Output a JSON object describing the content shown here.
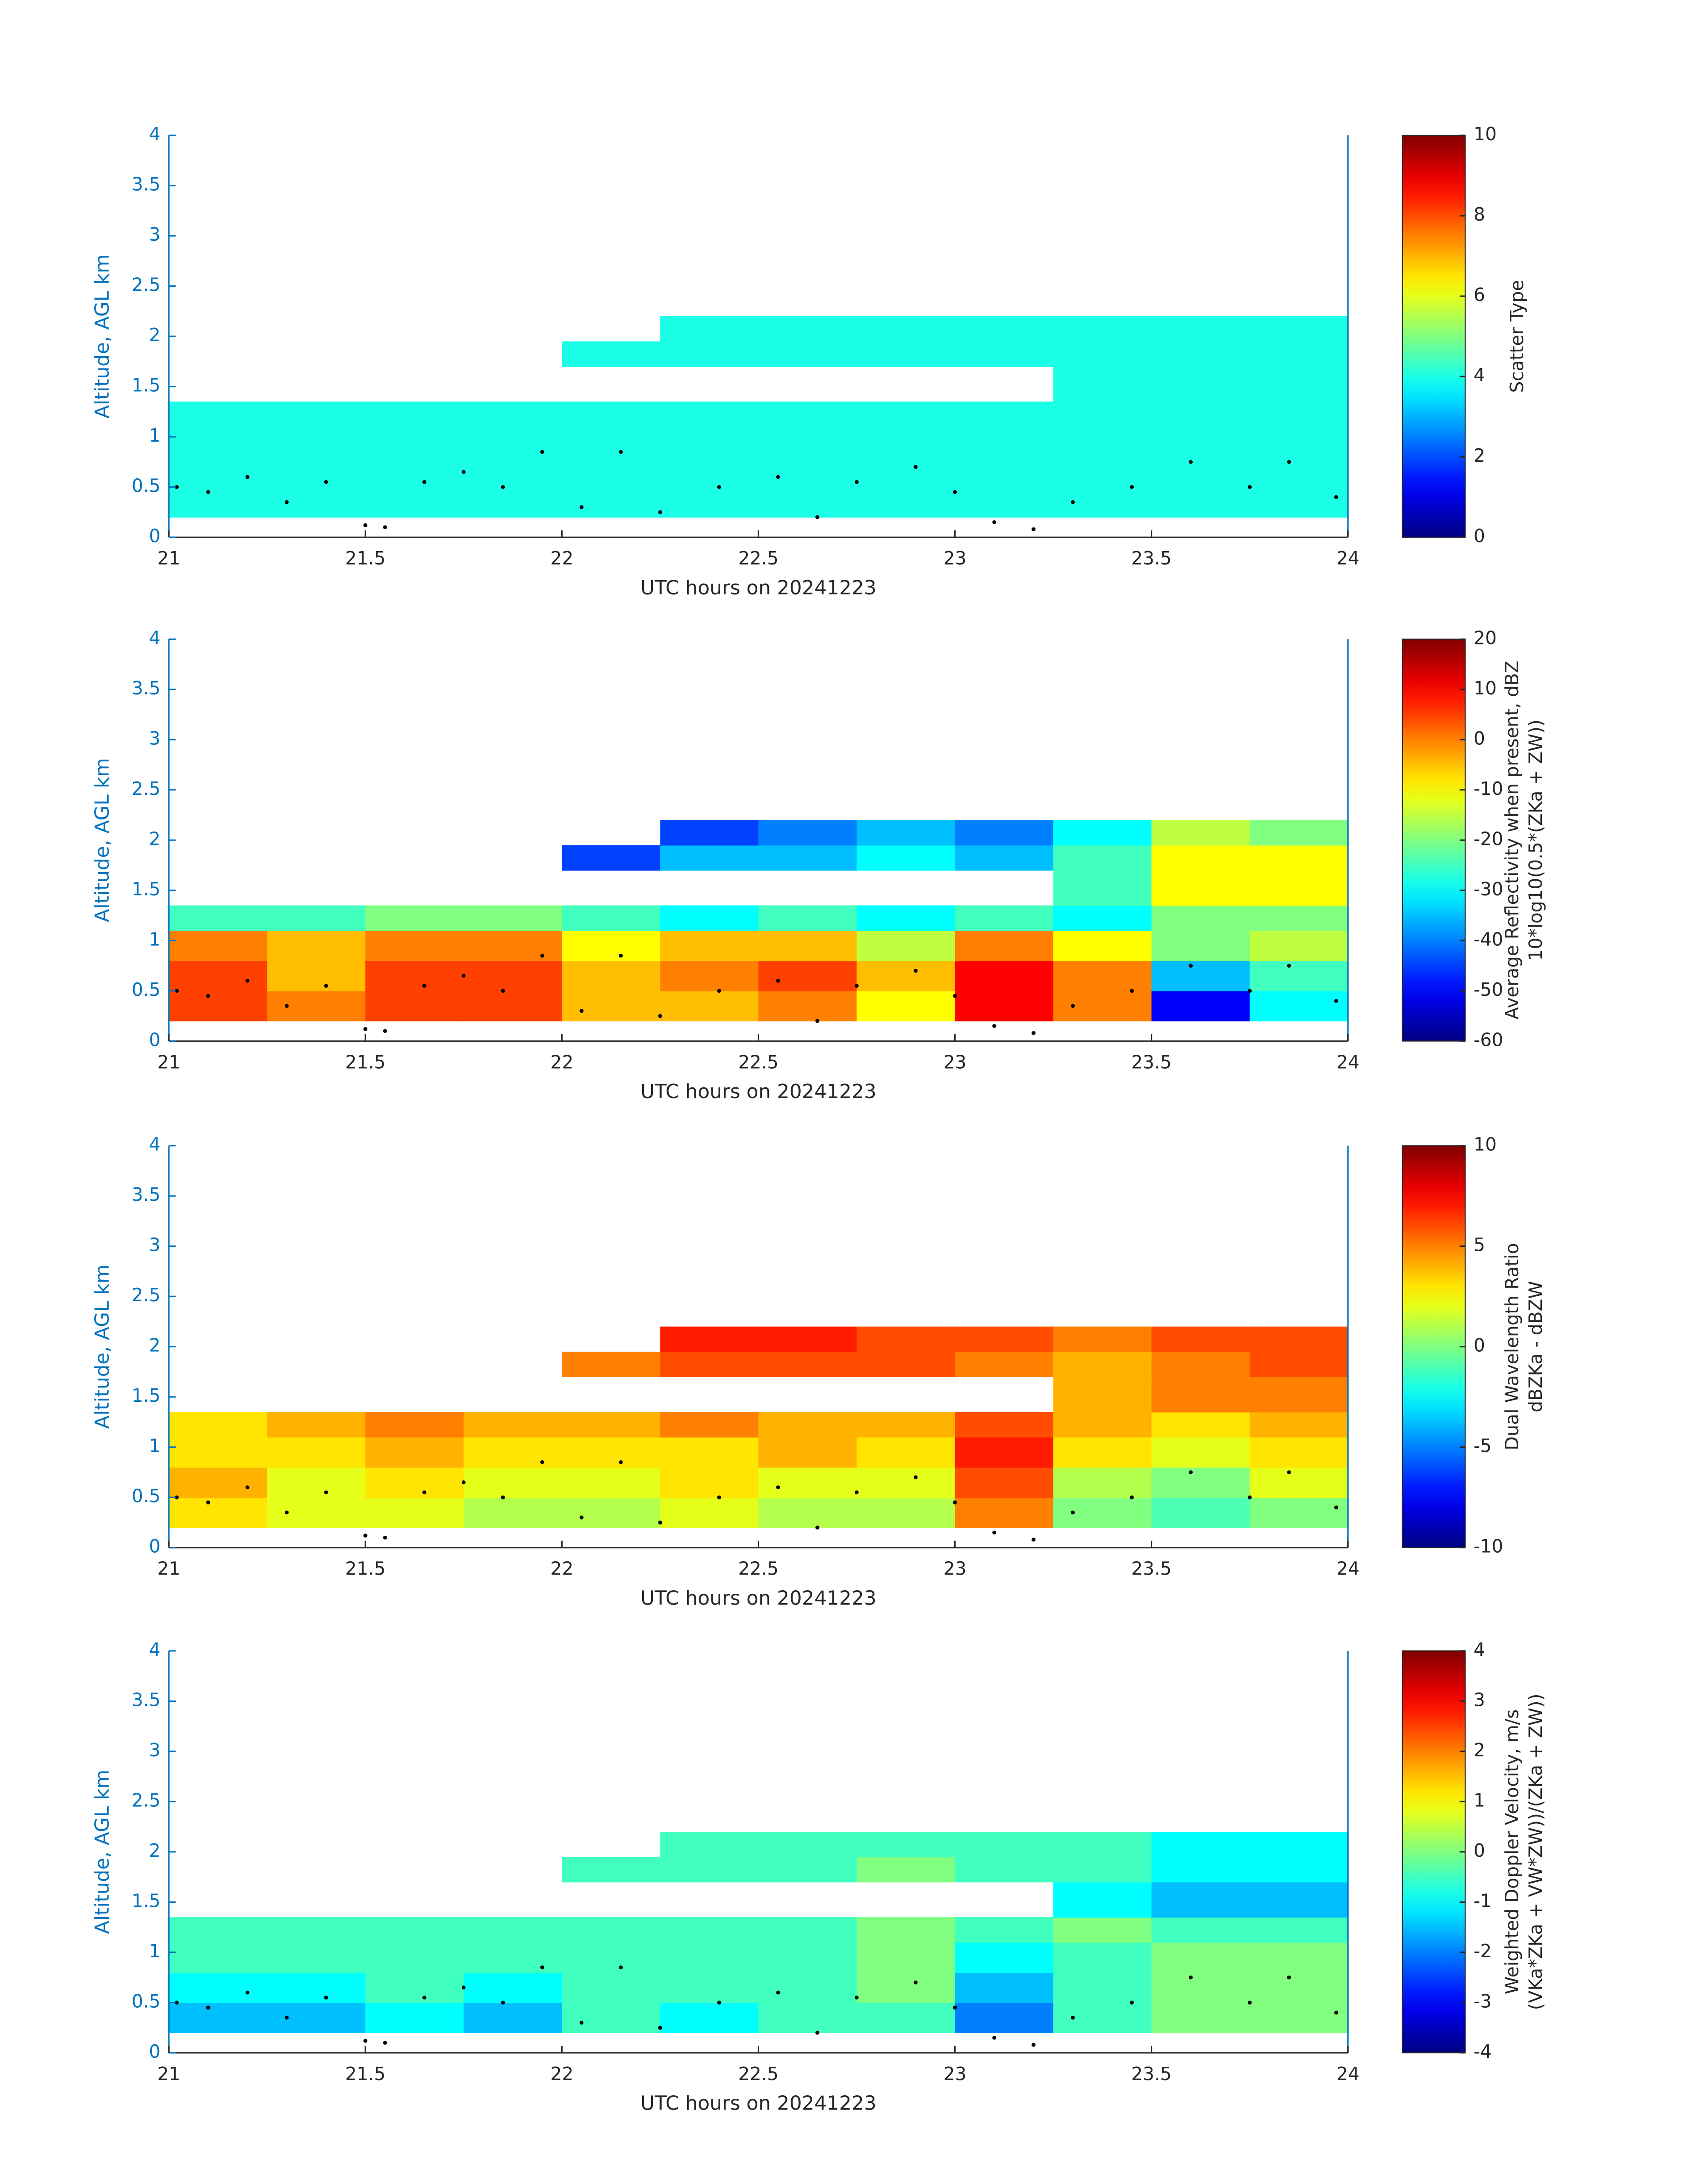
{
  "chart_data": [
    {
      "type": "heatmap",
      "xlabel": "UTC hours on 20241223",
      "ylabel": "Altitude, AGL km",
      "xlim": [
        21,
        24
      ],
      "xticks": [
        21,
        21.5,
        22,
        22.5,
        23,
        23.5,
        24
      ],
      "ylim": [
        0,
        4
      ],
      "yticks": [
        0,
        0.5,
        1,
        1.5,
        2,
        2.5,
        3,
        3.5,
        4
      ],
      "xbins": [
        21,
        21.25,
        21.5,
        21.75,
        22,
        22.25,
        22.5,
        22.75,
        23,
        23.25,
        23.5,
        23.75,
        24
      ],
      "ybins": [
        0.2,
        0.5,
        0.8,
        1.1,
        1.35,
        1.7,
        1.95,
        2.2
      ],
      "z": [
        [
          4,
          4,
          4,
          4,
          4,
          4,
          4,
          4,
          4,
          4,
          4,
          4
        ],
        [
          4,
          4,
          4,
          4,
          4,
          4,
          4,
          4,
          4,
          4,
          4,
          4
        ],
        [
          4,
          4,
          4,
          4,
          4,
          4,
          4,
          4,
          4,
          4,
          4,
          4
        ],
        [
          4,
          4,
          4,
          4,
          4,
          4,
          4,
          4,
          4,
          4,
          4,
          4
        ],
        [
          null,
          null,
          null,
          null,
          null,
          null,
          null,
          null,
          null,
          4,
          4,
          4
        ],
        [
          null,
          null,
          null,
          null,
          4,
          4,
          4,
          4,
          4,
          4,
          4,
          4
        ],
        [
          null,
          null,
          null,
          null,
          null,
          4,
          4,
          4,
          4,
          4,
          4,
          4
        ]
      ],
      "colormap": "jet",
      "clim": [
        0,
        10
      ],
      "cticks": [
        0,
        2,
        4,
        6,
        8,
        10
      ],
      "colorbar_label": [
        "Scatter Type"
      ],
      "points": {
        "color": "#000000",
        "x": [
          21.02,
          21.1,
          21.2,
          21.3,
          21.4,
          21.5,
          21.55,
          21.65,
          21.75,
          21.85,
          21.95,
          22.05,
          22.15,
          22.25,
          22.4,
          22.55,
          22.65,
          22.75,
          22.9,
          23.0,
          23.1,
          23.2,
          23.3,
          23.45,
          23.6,
          23.75,
          23.85,
          23.97
        ],
        "y": [
          0.5,
          0.45,
          0.6,
          0.35,
          0.55,
          0.12,
          0.1,
          0.55,
          0.65,
          0.5,
          0.85,
          0.3,
          0.85,
          0.25,
          0.5,
          0.6,
          0.2,
          0.55,
          0.7,
          0.45,
          0.15,
          0.08,
          0.35,
          0.5,
          0.75,
          0.5,
          0.75,
          0.4
        ]
      }
    },
    {
      "type": "heatmap",
      "xlabel": "UTC hours on 20241223",
      "ylabel": "Altitude, AGL km",
      "xlim": [
        21,
        24
      ],
      "xticks": [
        21,
        21.5,
        22,
        22.5,
        23,
        23.5,
        24
      ],
      "ylim": [
        0,
        4
      ],
      "yticks": [
        0,
        0.5,
        1,
        1.5,
        2,
        2.5,
        3,
        3.5,
        4
      ],
      "xbins": [
        21,
        21.25,
        21.5,
        21.75,
        22,
        22.25,
        22.5,
        22.75,
        23,
        23.25,
        23.5,
        23.75,
        24
      ],
      "ybins": [
        0.2,
        0.5,
        0.8,
        1.1,
        1.35,
        1.7,
        1.95,
        2.2
      ],
      "z": [
        [
          5,
          0,
          5,
          5,
          -5,
          -5,
          0,
          -10,
          10,
          0,
          -50,
          -30
        ],
        [
          5,
          -5,
          5,
          5,
          -5,
          0,
          5,
          -5,
          10,
          0,
          -35,
          -25
        ],
        [
          0,
          -5,
          0,
          0,
          -10,
          -5,
          -5,
          -15,
          0,
          -10,
          -20,
          -15
        ],
        [
          -25,
          -25,
          -20,
          -20,
          -25,
          -30,
          -25,
          -30,
          -25,
          -30,
          -20,
          -20
        ],
        [
          null,
          null,
          null,
          null,
          null,
          null,
          null,
          null,
          null,
          -25,
          -10,
          -10
        ],
        [
          null,
          null,
          null,
          null,
          -45,
          -35,
          -35,
          -30,
          -35,
          -25,
          -10,
          -10
        ],
        [
          null,
          null,
          null,
          null,
          null,
          -45,
          -40,
          -35,
          -40,
          -30,
          -15,
          -20
        ]
      ],
      "colormap": "jet",
      "clim": [
        -60,
        20
      ],
      "cticks": [
        -60,
        -50,
        -40,
        -30,
        -20,
        -10,
        0,
        10,
        20
      ],
      "colorbar_label": [
        "Average Reflectivity when present, dBZ",
        "10*log10(0.5*(ZKa + ZW))"
      ],
      "points": {
        "color": "#000000",
        "x": [
          21.02,
          21.1,
          21.2,
          21.3,
          21.4,
          21.5,
          21.55,
          21.65,
          21.75,
          21.85,
          21.95,
          22.05,
          22.15,
          22.25,
          22.4,
          22.55,
          22.65,
          22.75,
          22.9,
          23.0,
          23.1,
          23.2,
          23.3,
          23.45,
          23.6,
          23.75,
          23.85,
          23.97
        ],
        "y": [
          0.5,
          0.45,
          0.6,
          0.35,
          0.55,
          0.12,
          0.1,
          0.55,
          0.65,
          0.5,
          0.85,
          0.3,
          0.85,
          0.25,
          0.5,
          0.6,
          0.2,
          0.55,
          0.7,
          0.45,
          0.15,
          0.08,
          0.35,
          0.5,
          0.75,
          0.5,
          0.75,
          0.4
        ]
      }
    },
    {
      "type": "heatmap",
      "xlabel": "UTC hours on 20241223",
      "ylabel": "Altitude, AGL km",
      "xlim": [
        21,
        24
      ],
      "xticks": [
        21,
        21.5,
        22,
        22.5,
        23,
        23.5,
        24
      ],
      "ylim": [
        0,
        4
      ],
      "yticks": [
        0,
        0.5,
        1,
        1.5,
        2,
        2.5,
        3,
        3.5,
        4
      ],
      "xbins": [
        21,
        21.25,
        21.5,
        21.75,
        22,
        22.25,
        22.5,
        22.75,
        23,
        23.25,
        23.5,
        23.75,
        24
      ],
      "ybins": [
        0.2,
        0.5,
        0.8,
        1.1,
        1.35,
        1.7,
        1.95,
        2.2
      ],
      "z": [
        [
          3,
          2,
          2,
          1,
          1,
          2,
          1,
          1,
          5,
          0,
          -1,
          0
        ],
        [
          4,
          2,
          3,
          2,
          2,
          3,
          2,
          2,
          6,
          1,
          0,
          2
        ],
        [
          3,
          3,
          4,
          3,
          3,
          3,
          4,
          3,
          7,
          3,
          2,
          3
        ],
        [
          3,
          4,
          5,
          4,
          4,
          5,
          4,
          4,
          6,
          4,
          3,
          4
        ],
        [
          null,
          null,
          null,
          null,
          null,
          null,
          null,
          null,
          null,
          4,
          5,
          5
        ],
        [
          null,
          null,
          null,
          null,
          5,
          6,
          6,
          6,
          5,
          4,
          5,
          6
        ],
        [
          null,
          null,
          null,
          null,
          null,
          7,
          7,
          6,
          6,
          5,
          6,
          6
        ]
      ],
      "colormap": "jet",
      "clim": [
        -10,
        10
      ],
      "cticks": [
        -10,
        -5,
        0,
        5,
        10
      ],
      "colorbar_label": [
        "Dual Wavelength Ratio",
        "dBZKa - dBZW"
      ],
      "points": {
        "color": "#000000",
        "x": [
          21.02,
          21.1,
          21.2,
          21.3,
          21.4,
          21.5,
          21.55,
          21.65,
          21.75,
          21.85,
          21.95,
          22.05,
          22.15,
          22.25,
          22.4,
          22.55,
          22.65,
          22.75,
          22.9,
          23.0,
          23.1,
          23.2,
          23.3,
          23.45,
          23.6,
          23.75,
          23.85,
          23.97
        ],
        "y": [
          0.5,
          0.45,
          0.6,
          0.35,
          0.55,
          0.12,
          0.1,
          0.55,
          0.65,
          0.5,
          0.85,
          0.3,
          0.85,
          0.25,
          0.5,
          0.6,
          0.2,
          0.55,
          0.7,
          0.45,
          0.15,
          0.08,
          0.35,
          0.5,
          0.75,
          0.5,
          0.75,
          0.4
        ]
      }
    },
    {
      "type": "heatmap",
      "xlabel": "UTC hours on 20241223",
      "ylabel": "Altitude, AGL km",
      "xlim": [
        21,
        24
      ],
      "xticks": [
        21,
        21.5,
        22,
        22.5,
        23,
        23.5,
        24
      ],
      "ylim": [
        0,
        4
      ],
      "yticks": [
        0,
        0.5,
        1,
        1.5,
        2,
        2.5,
        3,
        3.5,
        4
      ],
      "xbins": [
        21,
        21.25,
        21.5,
        21.75,
        22,
        22.25,
        22.5,
        22.75,
        23,
        23.25,
        23.5,
        23.75,
        24
      ],
      "ybins": [
        0.2,
        0.5,
        0.8,
        1.1,
        1.35,
        1.7,
        1.95,
        2.2
      ],
      "z": [
        [
          -1.5,
          -1.5,
          -1,
          -1.5,
          -0.5,
          -1,
          -0.5,
          -0.5,
          -2,
          -0.5,
          0,
          0
        ],
        [
          -1,
          -1,
          -0.5,
          -1,
          -0.5,
          -0.5,
          -0.5,
          0,
          -1.5,
          -0.5,
          0,
          0
        ],
        [
          -0.5,
          -0.5,
          -0.5,
          -0.5,
          -0.5,
          -0.5,
          -0.5,
          0,
          -1,
          -0.5,
          0,
          0
        ],
        [
          -0.5,
          -0.5,
          -0.5,
          -0.5,
          -0.5,
          -0.5,
          -0.5,
          0,
          -0.5,
          0,
          -0.5,
          -0.5
        ],
        [
          null,
          null,
          null,
          null,
          null,
          null,
          null,
          null,
          null,
          -1,
          -1.5,
          -1.5
        ],
        [
          null,
          null,
          null,
          null,
          -0.5,
          -0.5,
          -0.5,
          0,
          -0.5,
          -0.5,
          -1,
          -1
        ],
        [
          null,
          null,
          null,
          null,
          null,
          -0.5,
          -0.5,
          -0.5,
          -0.5,
          -0.5,
          -1,
          -1
        ]
      ],
      "colormap": "jet",
      "clim": [
        -4,
        4
      ],
      "cticks": [
        -4,
        -3,
        -2,
        -1,
        0,
        1,
        2,
        3,
        4
      ],
      "colorbar_label": [
        "Weighted Doppler Velocity, m/s",
        "(VKa*ZKa + VW*ZW))/(ZKa + ZW))"
      ],
      "points": {
        "color": "#000000",
        "x": [
          21.02,
          21.1,
          21.2,
          21.3,
          21.4,
          21.5,
          21.55,
          21.65,
          21.75,
          21.85,
          21.95,
          22.05,
          22.15,
          22.25,
          22.4,
          22.55,
          22.65,
          22.75,
          22.9,
          23.0,
          23.1,
          23.2,
          23.3,
          23.45,
          23.6,
          23.75,
          23.85,
          23.97
        ],
        "y": [
          0.5,
          0.45,
          0.6,
          0.35,
          0.55,
          0.12,
          0.1,
          0.55,
          0.65,
          0.5,
          0.85,
          0.3,
          0.85,
          0.25,
          0.5,
          0.6,
          0.2,
          0.55,
          0.7,
          0.45,
          0.15,
          0.08,
          0.35,
          0.5,
          0.75,
          0.5,
          0.75,
          0.4
        ]
      }
    }
  ]
}
